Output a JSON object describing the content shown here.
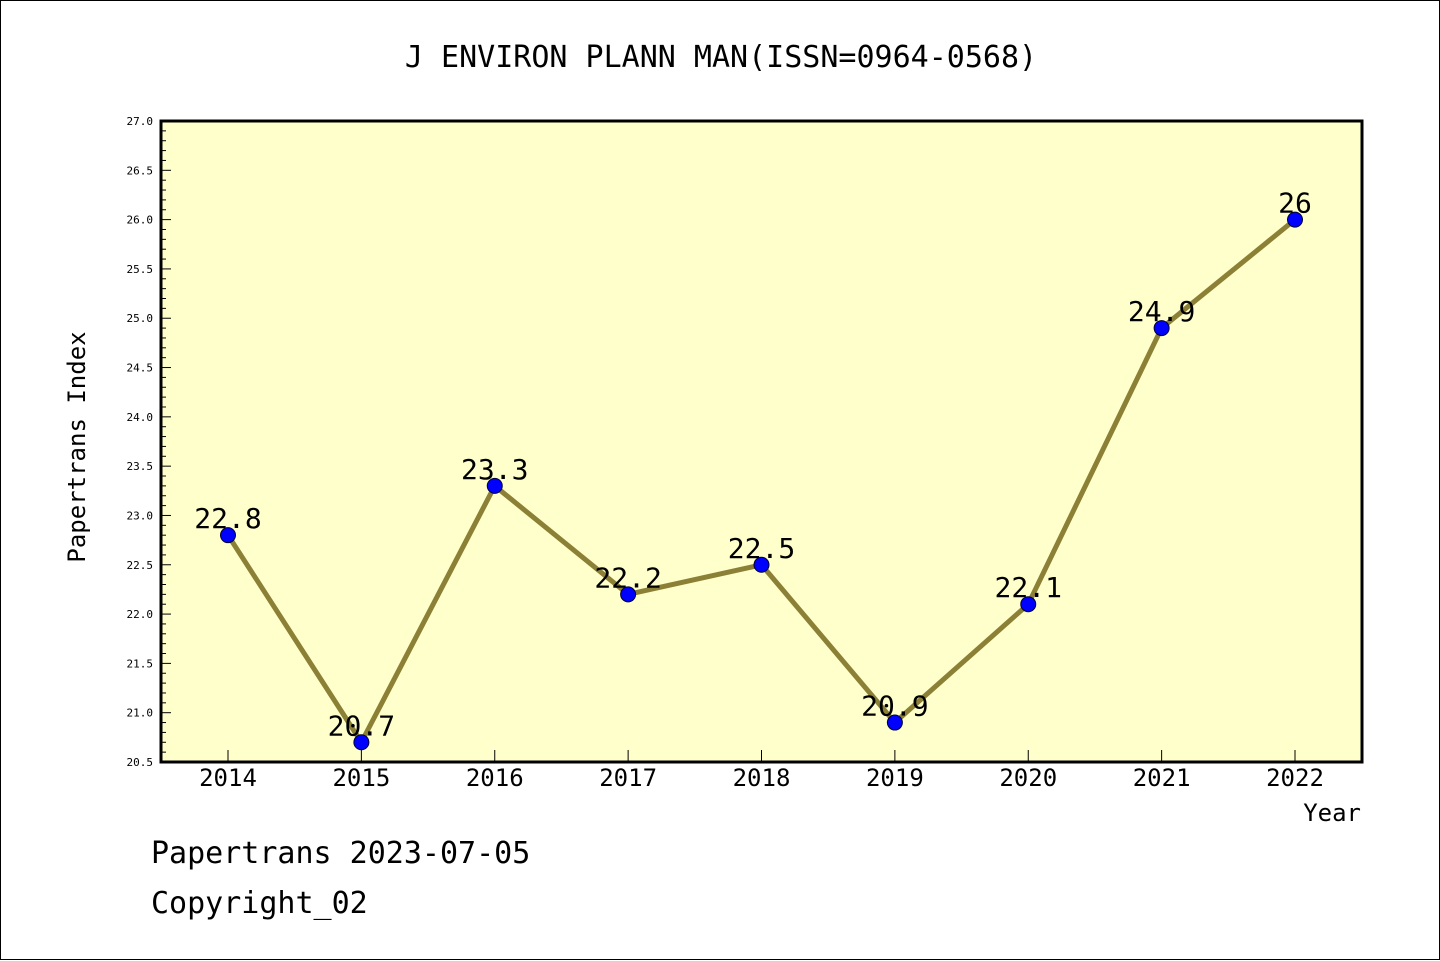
{
  "chart_data": {
    "type": "line",
    "title": "J ENVIRON PLANN MAN(ISSN=0964-0568)",
    "xlabel": "Year",
    "ylabel": "Papertrans Index",
    "categories": [
      "2014",
      "2015",
      "2016",
      "2017",
      "2018",
      "2019",
      "2020",
      "2021",
      "2022"
    ],
    "series": [
      {
        "values": [
          22.8,
          20.7,
          23.3,
          22.2,
          22.5,
          20.9,
          22.1,
          24.9,
          26
        ],
        "data_labels": [
          "22.8",
          "20.7",
          "23.3",
          "22.2",
          "22.5",
          "20.9",
          "22.1",
          "24.9",
          "26"
        ]
      }
    ],
    "ylim": [
      20.5,
      27.0
    ],
    "yticks": [
      "20.5",
      "21.0",
      "21.5",
      "22.0",
      "22.5",
      "23.0",
      "23.5",
      "24.0",
      "24.5",
      "25.0",
      "25.5",
      "26.0",
      "26.5",
      "27.0"
    ],
    "grid": false,
    "legend": "none",
    "colors": {
      "plot_background": "#ffffcc",
      "line": "#8b8035",
      "marker": "#0000ff"
    }
  },
  "footer": {
    "date_line": "Papertrans 2023-07-05",
    "copyright_line": "Copyright_02"
  }
}
